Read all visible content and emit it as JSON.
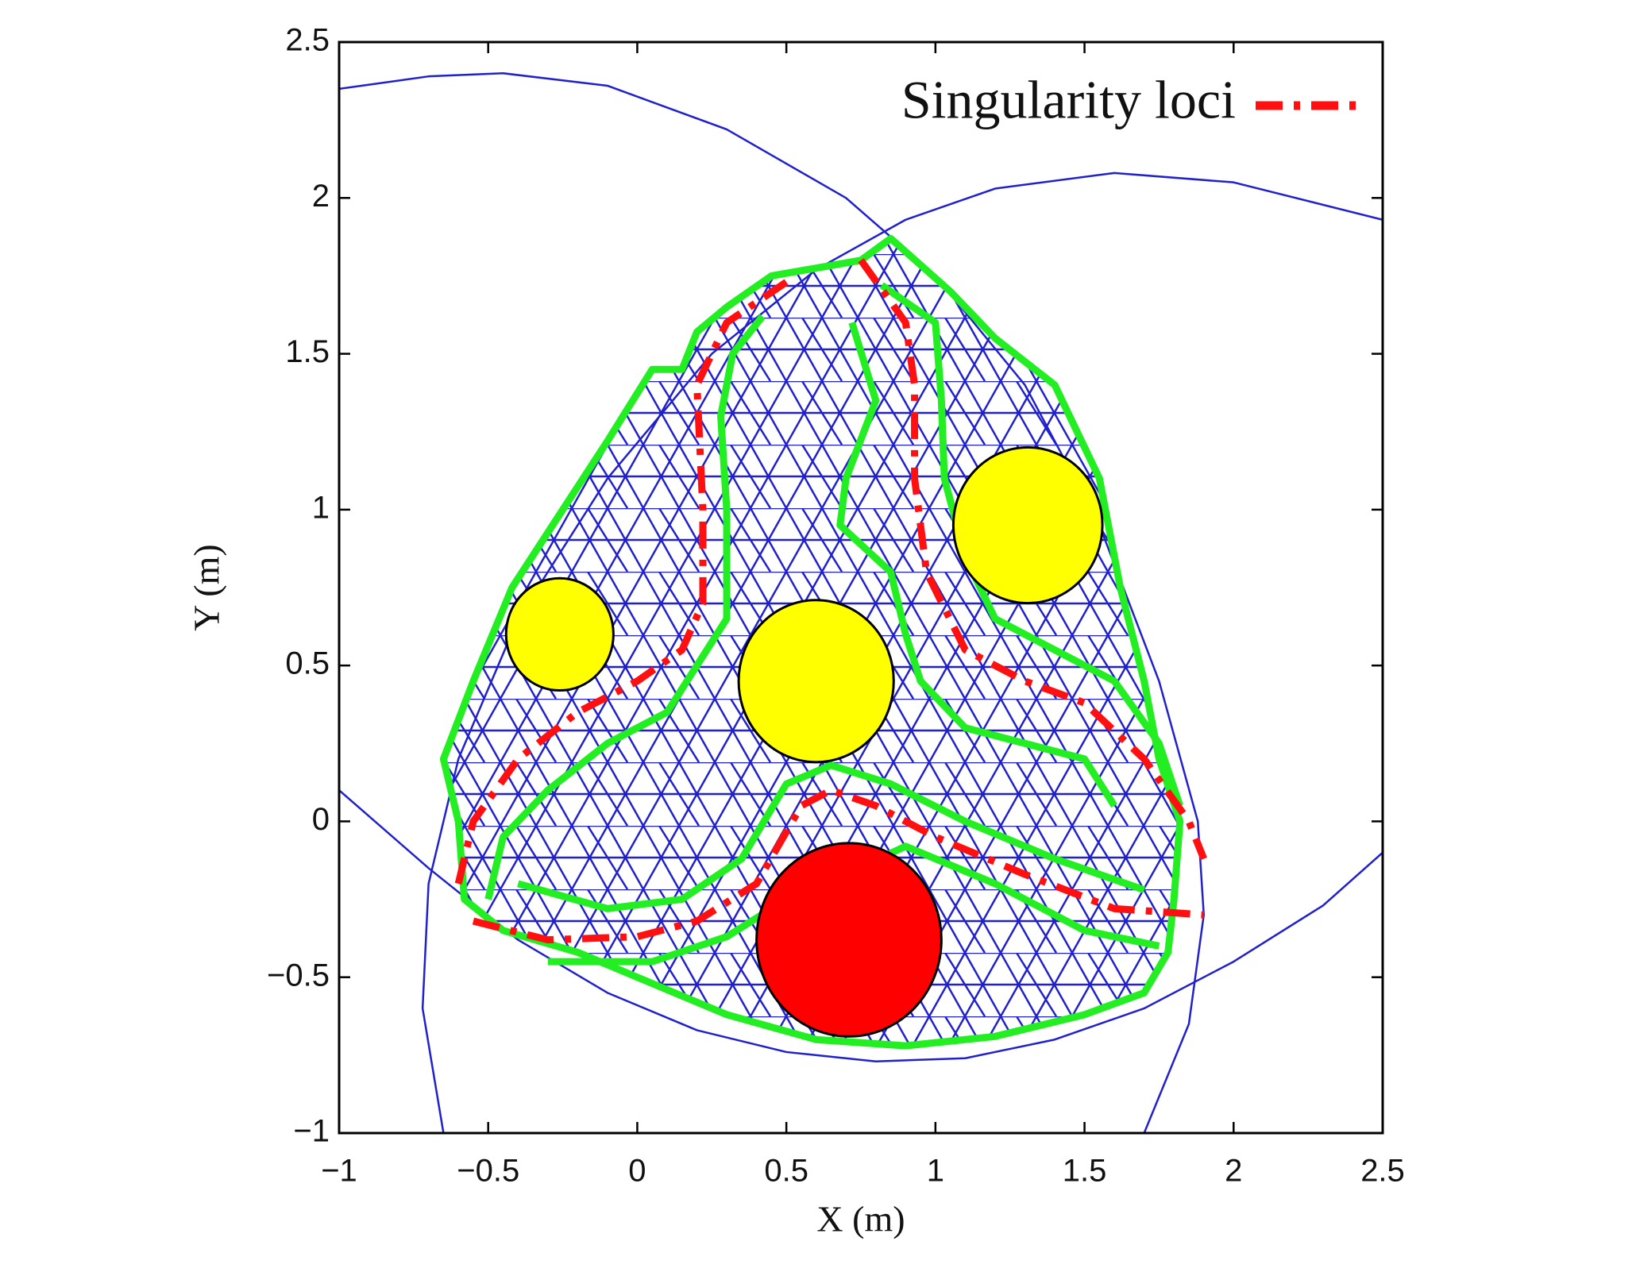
{
  "chart_data": {
    "type": "workspace",
    "xlabel": "X (m)",
    "ylabel": "Y (m)",
    "xlim": [
      -1,
      2.5
    ],
    "ylim": [
      -1,
      2.5
    ],
    "xticks": [
      {
        "value": -1,
        "label": "−1"
      },
      {
        "value": -0.5,
        "label": "−0.5"
      },
      0,
      0.5,
      1,
      1.5,
      2,
      2.5
    ],
    "yticks": [
      {
        "value": -1,
        "label": "−1"
      },
      {
        "value": -0.5,
        "label": "−0.5"
      },
      0,
      0.5,
      1,
      1.5,
      2,
      2.5
    ],
    "legend": "upper right",
    "series": [
      {
        "name": "Singularity loci",
        "color": "#ff1010",
        "style": "dashdot",
        "curves": [
          {
            "x": [
              0.5,
              0.3,
              0.2,
              0.22,
              0.22,
              0.15,
              0.0,
              -0.2,
              -0.4,
              -0.55,
              -0.6
            ],
            "y": [
              1.73,
              1.6,
              1.4,
              1.0,
              0.7,
              0.55,
              0.45,
              0.35,
              0.2,
              0.0,
              -0.2
            ]
          },
          {
            "x": [
              0.75,
              0.9,
              0.93,
              0.93,
              0.97,
              1.1,
              1.3,
              1.5,
              1.7,
              1.85,
              1.9
            ],
            "y": [
              1.8,
              1.6,
              1.4,
              1.1,
              0.8,
              0.55,
              0.45,
              0.38,
              0.2,
              0.0,
              -0.12
            ]
          },
          {
            "x": [
              -0.55,
              -0.3,
              0.0,
              0.2,
              0.4,
              0.55,
              0.65,
              0.8,
              1.0,
              1.3,
              1.6,
              1.9
            ],
            "y": [
              -0.32,
              -0.38,
              -0.37,
              -0.32,
              -0.2,
              0.05,
              0.1,
              0.05,
              -0.05,
              -0.17,
              -0.28,
              -0.3
            ]
          }
        ]
      }
    ],
    "boundary_arcs": {
      "color": "#2020cc",
      "curves": [
        {
          "x": [
            -1,
            -0.7,
            -0.45,
            -0.1,
            0.3,
            0.7,
            1.0,
            1.3,
            1.55,
            1.75,
            1.88,
            1.9,
            1.85,
            1.7
          ],
          "y": [
            2.35,
            2.39,
            2.4,
            2.36,
            2.22,
            2.0,
            1.75,
            1.4,
            0.95,
            0.45,
            0.0,
            -0.3,
            -0.65,
            -1
          ]
        },
        {
          "x": [
            -0.65,
            -0.72,
            -0.7,
            -0.6,
            -0.4,
            -0.1,
            0.25,
            0.6,
            0.9,
            1.2,
            1.6,
            2.0,
            2.5
          ],
          "y": [
            -1,
            -0.6,
            -0.2,
            0.2,
            0.65,
            1.1,
            1.5,
            1.77,
            1.93,
            2.03,
            2.08,
            2.05,
            1.93
          ]
        },
        {
          "x": [
            -1,
            -0.7,
            -0.4,
            -0.1,
            0.2,
            0.5,
            0.8,
            1.1,
            1.4,
            1.7,
            2.0,
            2.3,
            2.5
          ],
          "y": [
            0.1,
            -0.15,
            -0.38,
            -0.55,
            -0.67,
            -0.74,
            -0.77,
            -0.76,
            -0.7,
            -0.6,
            -0.45,
            -0.27,
            -0.1
          ]
        }
      ]
    },
    "cell_borders": {
      "color": "#22ee22",
      "curves": [
        {
          "x": [
            0.45,
            0.3,
            0.2,
            0.15,
            0.05,
            -0.1,
            -0.25,
            -0.42,
            -0.55,
            -0.65,
            -0.6,
            -0.58,
            -0.45,
            -0.2,
            0.0,
            0.3,
            0.6,
            0.9,
            1.2,
            1.5,
            1.7,
            1.78,
            1.8,
            1.82,
            1.75,
            1.7,
            1.62,
            1.55,
            1.4,
            1.2,
            1.05,
            0.85,
            0.75
          ],
          "y": [
            1.75,
            1.65,
            1.57,
            1.45,
            1.45,
            1.22,
            1.0,
            0.75,
            0.45,
            0.2,
            0.0,
            -0.25,
            -0.35,
            -0.42,
            -0.5,
            -0.62,
            -0.7,
            -0.72,
            -0.69,
            -0.62,
            -0.55,
            -0.42,
            -0.25,
            0.0,
            0.2,
            0.45,
            0.75,
            1.1,
            1.4,
            1.55,
            1.7,
            1.87,
            1.8
          ]
        },
        {
          "x": [
            0.42,
            0.32,
            0.28,
            0.3,
            0.3,
            0.2,
            0.1,
            -0.1,
            -0.3,
            -0.45,
            -0.5
          ],
          "y": [
            1.62,
            1.5,
            1.3,
            1.0,
            0.65,
            0.5,
            0.35,
            0.25,
            0.1,
            -0.05,
            -0.25
          ]
        },
        {
          "x": [
            0.82,
            1.0,
            1.02,
            1.03,
            1.1,
            1.2,
            1.4,
            1.6,
            1.75,
            1.82
          ],
          "y": [
            1.72,
            1.6,
            1.35,
            1.1,
            0.85,
            0.65,
            0.55,
            0.45,
            0.25,
            0.05
          ]
        },
        {
          "x": [
            0.72,
            0.8,
            0.7,
            0.68,
            0.85,
            0.9,
            0.95,
            1.1,
            1.3,
            1.5,
            1.6
          ],
          "y": [
            1.6,
            1.35,
            1.1,
            0.95,
            0.8,
            0.6,
            0.45,
            0.3,
            0.25,
            0.2,
            0.05
          ]
        },
        {
          "x": [
            -0.4,
            -0.1,
            0.15,
            0.35,
            0.5,
            0.65,
            0.85,
            1.1,
            1.4,
            1.7
          ],
          "y": [
            -0.2,
            -0.28,
            -0.25,
            -0.12,
            0.12,
            0.18,
            0.12,
            0.0,
            -0.12,
            -0.22
          ]
        },
        {
          "x": [
            -0.3,
            0.05,
            0.3,
            0.45,
            0.9,
            1.2,
            1.5,
            1.75
          ],
          "y": [
            -0.45,
            -0.45,
            -0.37,
            -0.28,
            -0.08,
            -0.2,
            -0.35,
            -0.4
          ]
        }
      ]
    },
    "obstacles": {
      "x": [
        -0.26,
        0.6,
        1.31,
        0.71
      ],
      "y": [
        0.6,
        0.45,
        0.95,
        -0.38
      ],
      "radius": [
        0.18,
        0.26,
        0.25,
        0.31
      ],
      "colors": [
        "#ffff00",
        "#ffff00",
        "#ffff00",
        "#ff0000"
      ]
    }
  }
}
